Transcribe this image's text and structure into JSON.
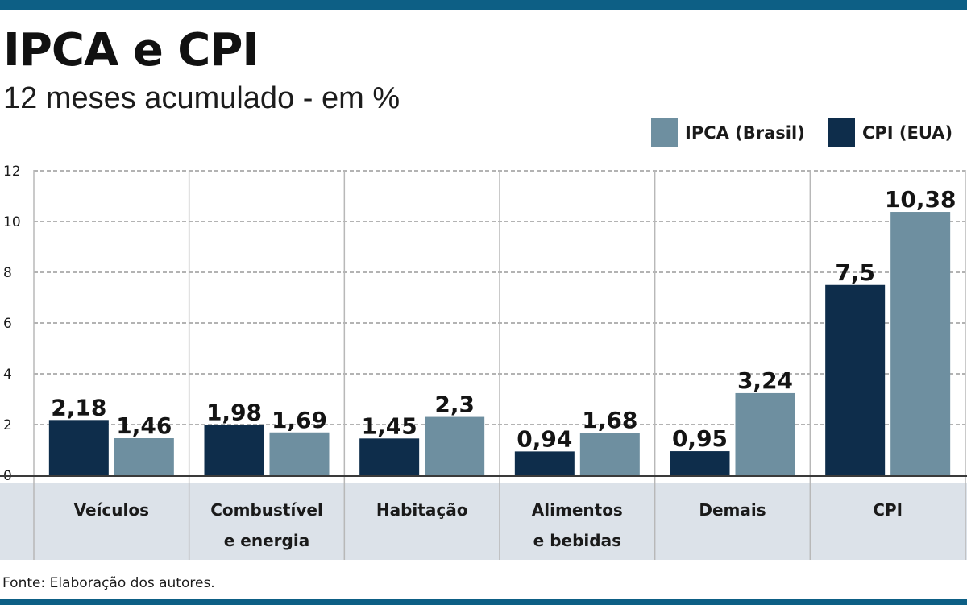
{
  "header": {
    "title": "IPCA e CPI",
    "subtitle": "12 meses acumulado - em %"
  },
  "legend": [
    {
      "label": "IPCA (Brasil)",
      "color": "#6e8fa0"
    },
    {
      "label": "CPI (EUA)",
      "color": "#0e2d4b"
    }
  ],
  "footer": {
    "source": "Fonte: Elaboração dos autores."
  },
  "chart_data": {
    "type": "bar",
    "title": "IPCA e CPI",
    "subtitle": "12 meses acumulado - em %",
    "xlabel": "",
    "ylabel": "",
    "ylim": [
      0,
      12
    ],
    "yticks": [
      0,
      2,
      4,
      6,
      8,
      10,
      12
    ],
    "grid": true,
    "legend_position": "top-right",
    "categories": [
      [
        "Veículos"
      ],
      [
        "Combustível",
        "e energia"
      ],
      [
        "Habitação"
      ],
      [
        "Alimentos",
        "e bebidas"
      ],
      [
        "Demais"
      ],
      [
        "CPI"
      ]
    ],
    "series": [
      {
        "name": "CPI (EUA)",
        "color": "#0e2d4b",
        "values": [
          2.18,
          1.98,
          1.45,
          0.94,
          0.95,
          7.5
        ],
        "labels": [
          "2,18",
          "1,98",
          "1,45",
          "0,94",
          "0,95",
          "7,5"
        ]
      },
      {
        "name": "IPCA (Brasil)",
        "color": "#6e8fa0",
        "values": [
          1.46,
          1.69,
          2.3,
          1.68,
          3.24,
          10.38
        ],
        "labels": [
          "1,46",
          "1,69",
          "2,3",
          "1,68",
          "3,24",
          "10,38"
        ]
      }
    ]
  }
}
